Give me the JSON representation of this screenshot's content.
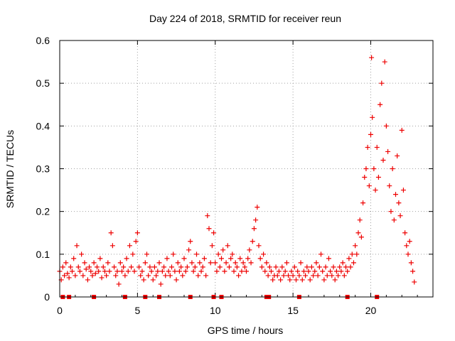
{
  "chart_data": {
    "type": "scatter",
    "title": "Day 224 of 2018, SRMTID for receiver reun",
    "xlabel": "GPS time / hours",
    "ylabel": "SRMTID / TECUs",
    "xlim": [
      0,
      24
    ],
    "ylim": [
      0,
      0.6
    ],
    "x_ticks": [
      0,
      5,
      10,
      15,
      20
    ],
    "x_tick_labels": [
      "0",
      "5",
      "10",
      "15",
      "20"
    ],
    "y_ticks": [
      0,
      0.1,
      0.2,
      0.3,
      0.4,
      0.5,
      0.6
    ],
    "y_tick_labels": [
      "0",
      "0.1",
      "0.2",
      "0.3",
      "0.4",
      "0.5",
      "0.6"
    ],
    "grid": true,
    "marker": "plus",
    "color": "#ee0000",
    "series": [
      {
        "name": "SRMTID",
        "points": [
          [
            0.0,
            0.06
          ],
          [
            0.1,
            0.04
          ],
          [
            0.2,
            0.07
          ],
          [
            0.3,
            0.05
          ],
          [
            0.4,
            0.08
          ],
          [
            0.5,
            0.055
          ],
          [
            0.6,
            0.045
          ],
          [
            0.7,
            0.07
          ],
          [
            0.8,
            0.06
          ],
          [
            0.9,
            0.09
          ],
          [
            1.0,
            0.05
          ],
          [
            1.1,
            0.12
          ],
          [
            1.2,
            0.07
          ],
          [
            1.3,
            0.06
          ],
          [
            1.4,
            0.1
          ],
          [
            1.5,
            0.05
          ],
          [
            1.6,
            0.08
          ],
          [
            1.7,
            0.065
          ],
          [
            1.8,
            0.04
          ],
          [
            1.9,
            0.07
          ],
          [
            2.0,
            0.06
          ],
          [
            2.1,
            0.05
          ],
          [
            2.2,
            0.08
          ],
          [
            2.3,
            0.055
          ],
          [
            2.4,
            0.07
          ],
          [
            2.5,
            0.06
          ],
          [
            2.6,
            0.09
          ],
          [
            2.7,
            0.045
          ],
          [
            2.8,
            0.07
          ],
          [
            2.9,
            0.06
          ],
          [
            3.0,
            0.05
          ],
          [
            3.1,
            0.08
          ],
          [
            3.2,
            0.06
          ],
          [
            3.3,
            0.15
          ],
          [
            3.4,
            0.12
          ],
          [
            3.5,
            0.07
          ],
          [
            3.6,
            0.05
          ],
          [
            3.7,
            0.06
          ],
          [
            3.8,
            0.03
          ],
          [
            3.9,
            0.08
          ],
          [
            4.0,
            0.06
          ],
          [
            4.1,
            0.07
          ],
          [
            4.2,
            0.05
          ],
          [
            4.3,
            0.09
          ],
          [
            4.4,
            0.06
          ],
          [
            4.5,
            0.12
          ],
          [
            4.6,
            0.07
          ],
          [
            4.7,
            0.1
          ],
          [
            4.8,
            0.06
          ],
          [
            4.9,
            0.13
          ],
          [
            5.0,
            0.15
          ],
          [
            5.1,
            0.07
          ],
          [
            5.2,
            0.05
          ],
          [
            5.3,
            0.06
          ],
          [
            5.4,
            0.04
          ],
          [
            5.5,
            0.08
          ],
          [
            5.6,
            0.1
          ],
          [
            5.7,
            0.05
          ],
          [
            5.8,
            0.07
          ],
          [
            5.9,
            0.06
          ],
          [
            6.0,
            0.04
          ],
          [
            6.1,
            0.07
          ],
          [
            6.2,
            0.05
          ],
          [
            6.3,
            0.06
          ],
          [
            6.4,
            0.08
          ],
          [
            6.5,
            0.03
          ],
          [
            6.6,
            0.06
          ],
          [
            6.7,
            0.07
          ],
          [
            6.8,
            0.05
          ],
          [
            6.9,
            0.09
          ],
          [
            7.0,
            0.06
          ],
          [
            7.1,
            0.05
          ],
          [
            7.2,
            0.07
          ],
          [
            7.3,
            0.1
          ],
          [
            7.4,
            0.06
          ],
          [
            7.5,
            0.04
          ],
          [
            7.6,
            0.08
          ],
          [
            7.7,
            0.06
          ],
          [
            7.8,
            0.07
          ],
          [
            7.9,
            0.05
          ],
          [
            8.0,
            0.09
          ],
          [
            8.1,
            0.06
          ],
          [
            8.2,
            0.07
          ],
          [
            8.3,
            0.11
          ],
          [
            8.4,
            0.13
          ],
          [
            8.5,
            0.08
          ],
          [
            8.6,
            0.06
          ],
          [
            8.7,
            0.07
          ],
          [
            8.8,
            0.1
          ],
          [
            8.9,
            0.05
          ],
          [
            9.0,
            0.08
          ],
          [
            9.1,
            0.06
          ],
          [
            9.2,
            0.07
          ],
          [
            9.3,
            0.09
          ],
          [
            9.4,
            0.05
          ],
          [
            9.5,
            0.19
          ],
          [
            9.6,
            0.16
          ],
          [
            9.7,
            0.08
          ],
          [
            9.8,
            0.12
          ],
          [
            9.9,
            0.15
          ],
          [
            10.0,
            0.08
          ],
          [
            10.1,
            0.06
          ],
          [
            10.2,
            0.1
          ],
          [
            10.3,
            0.07
          ],
          [
            10.4,
            0.09
          ],
          [
            10.5,
            0.11
          ],
          [
            10.6,
            0.06
          ],
          [
            10.7,
            0.08
          ],
          [
            10.8,
            0.12
          ],
          [
            10.9,
            0.07
          ],
          [
            11.0,
            0.09
          ],
          [
            11.1,
            0.1
          ],
          [
            11.2,
            0.06
          ],
          [
            11.3,
            0.08
          ],
          [
            11.4,
            0.07
          ],
          [
            11.5,
            0.05
          ],
          [
            11.6,
            0.09
          ],
          [
            11.7,
            0.06
          ],
          [
            11.8,
            0.08
          ],
          [
            11.9,
            0.07
          ],
          [
            12.0,
            0.06
          ],
          [
            12.1,
            0.09
          ],
          [
            12.2,
            0.11
          ],
          [
            12.3,
            0.08
          ],
          [
            12.4,
            0.13
          ],
          [
            12.5,
            0.16
          ],
          [
            12.6,
            0.18
          ],
          [
            12.7,
            0.21
          ],
          [
            12.8,
            0.12
          ],
          [
            12.9,
            0.09
          ],
          [
            13.0,
            0.07
          ],
          [
            13.1,
            0.1
          ],
          [
            13.2,
            0.06
          ],
          [
            13.3,
            0.08
          ],
          [
            13.4,
            0.05
          ],
          [
            13.5,
            0.07
          ],
          [
            13.6,
            0.06
          ],
          [
            13.7,
            0.04
          ],
          [
            13.8,
            0.05
          ],
          [
            13.9,
            0.07
          ],
          [
            14.0,
            0.05
          ],
          [
            14.1,
            0.06
          ],
          [
            14.2,
            0.04
          ],
          [
            14.3,
            0.07
          ],
          [
            14.4,
            0.05
          ],
          [
            14.5,
            0.06
          ],
          [
            14.6,
            0.08
          ],
          [
            14.7,
            0.05
          ],
          [
            14.8,
            0.04
          ],
          [
            14.9,
            0.06
          ],
          [
            15.0,
            0.05
          ],
          [
            15.1,
            0.07
          ],
          [
            15.2,
            0.04
          ],
          [
            15.3,
            0.06
          ],
          [
            15.4,
            0.05
          ],
          [
            15.5,
            0.08
          ],
          [
            15.6,
            0.04
          ],
          [
            15.7,
            0.06
          ],
          [
            15.8,
            0.05
          ],
          [
            15.9,
            0.07
          ],
          [
            16.0,
            0.06
          ],
          [
            16.1,
            0.04
          ],
          [
            16.2,
            0.07
          ],
          [
            16.3,
            0.05
          ],
          [
            16.4,
            0.06
          ],
          [
            16.5,
            0.08
          ],
          [
            16.6,
            0.05
          ],
          [
            16.7,
            0.07
          ],
          [
            16.8,
            0.1
          ],
          [
            16.9,
            0.06
          ],
          [
            17.0,
            0.04
          ],
          [
            17.1,
            0.07
          ],
          [
            17.2,
            0.05
          ],
          [
            17.3,
            0.09
          ],
          [
            17.4,
            0.06
          ],
          [
            17.5,
            0.05
          ],
          [
            17.6,
            0.07
          ],
          [
            17.7,
            0.04
          ],
          [
            17.8,
            0.06
          ],
          [
            17.9,
            0.05
          ],
          [
            18.0,
            0.07
          ],
          [
            18.1,
            0.06
          ],
          [
            18.2,
            0.08
          ],
          [
            18.3,
            0.05
          ],
          [
            18.4,
            0.07
          ],
          [
            18.5,
            0.06
          ],
          [
            18.6,
            0.09
          ],
          [
            18.7,
            0.07
          ],
          [
            18.8,
            0.1
          ],
          [
            18.9,
            0.08
          ],
          [
            19.0,
            0.12
          ],
          [
            19.1,
            0.1
          ],
          [
            19.2,
            0.15
          ],
          [
            19.3,
            0.18
          ],
          [
            19.4,
            0.14
          ],
          [
            19.5,
            0.22
          ],
          [
            19.6,
            0.28
          ],
          [
            19.7,
            0.3
          ],
          [
            19.8,
            0.35
          ],
          [
            19.9,
            0.26
          ],
          [
            20.0,
            0.38
          ],
          [
            20.05,
            0.56
          ],
          [
            20.1,
            0.42
          ],
          [
            20.2,
            0.3
          ],
          [
            20.3,
            0.25
          ],
          [
            20.4,
            0.35
          ],
          [
            20.5,
            0.28
          ],
          [
            20.6,
            0.45
          ],
          [
            20.7,
            0.5
          ],
          [
            20.8,
            0.32
          ],
          [
            20.9,
            0.55
          ],
          [
            21.0,
            0.4
          ],
          [
            21.1,
            0.34
          ],
          [
            21.2,
            0.26
          ],
          [
            21.3,
            0.2
          ],
          [
            21.4,
            0.3
          ],
          [
            21.5,
            0.18
          ],
          [
            21.6,
            0.24
          ],
          [
            21.7,
            0.33
          ],
          [
            21.8,
            0.22
          ],
          [
            21.9,
            0.19
          ],
          [
            22.0,
            0.39
          ],
          [
            22.1,
            0.25
          ],
          [
            22.2,
            0.15
          ],
          [
            22.3,
            0.12
          ],
          [
            22.4,
            0.1
          ],
          [
            22.5,
            0.13
          ],
          [
            22.6,
            0.08
          ],
          [
            22.7,
            0.06
          ],
          [
            22.8,
            0.035
          ]
        ]
      }
    ],
    "zero_markers": [
      0.2,
      0.6,
      2.2,
      4.2,
      5.5,
      6.4,
      8.4,
      9.9,
      10.4,
      13.3,
      13.45,
      15.4,
      18.5,
      20.4
    ]
  }
}
